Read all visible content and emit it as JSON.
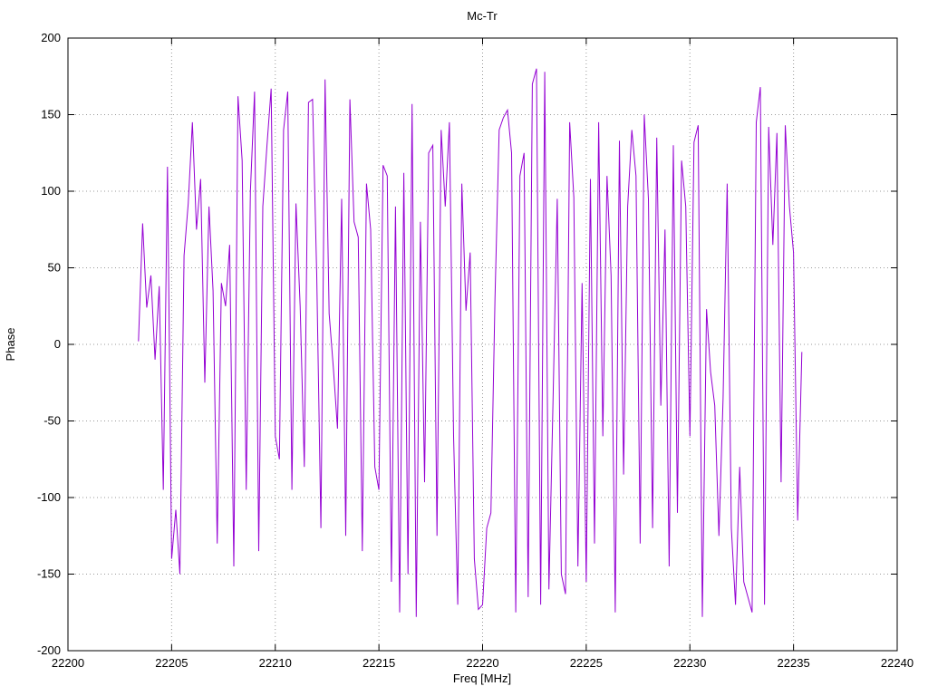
{
  "chart": {
    "title": "Mc-Tr",
    "xlabel": "Freq [MHz]",
    "ylabel": "Phase"
  },
  "chart_data": {
    "type": "line",
    "title": "Mc-Tr",
    "xlabel": "Freq [MHz]",
    "ylabel": "Phase",
    "xlim": [
      22200,
      22240
    ],
    "ylim": [
      -200,
      200
    ],
    "x_ticks": [
      22200,
      22205,
      22210,
      22215,
      22220,
      22225,
      22230,
      22235,
      22240
    ],
    "y_ticks": [
      -200,
      -150,
      -100,
      -50,
      0,
      50,
      100,
      150,
      200
    ],
    "grid": true,
    "grid_color": "#9a9a9a",
    "line_color": "#9400d3",
    "legend": "none",
    "series": [
      {
        "name": "Phase",
        "x_start": 22203.4,
        "x_step": 0.2,
        "values": [
          2,
          79,
          24,
          45,
          -10,
          38,
          -95,
          116,
          -140,
          -108,
          -150,
          58,
          92,
          145,
          75,
          108,
          -25,
          90,
          35,
          -130,
          40,
          25,
          65,
          -145,
          162,
          120,
          -95,
          100,
          165,
          -135,
          90,
          130,
          167,
          -60,
          -75,
          140,
          165,
          -95,
          92,
          25,
          -80,
          158,
          160,
          45,
          -120,
          173,
          20,
          -15,
          -55,
          95,
          -125,
          160,
          80,
          70,
          -135,
          105,
          75,
          -80,
          -95,
          117,
          110,
          -155,
          90,
          -175,
          112,
          -150,
          157,
          -178,
          80,
          -90,
          125,
          130,
          -125,
          140,
          90,
          145,
          -60,
          -170,
          105,
          22,
          60,
          -140,
          -173,
          -170,
          -120,
          -110,
          30,
          140,
          148,
          153,
          125,
          -175,
          110,
          125,
          -165,
          170,
          180,
          -170,
          178,
          -160,
          -35,
          95,
          -150,
          -163,
          145,
          96,
          -145,
          40,
          -155,
          108,
          -130,
          145,
          -60,
          110,
          45,
          -175,
          133,
          -85,
          90,
          140,
          110,
          -130,
          150,
          95,
          -120,
          135,
          -40,
          75,
          -145,
          130,
          -110,
          120,
          90,
          -60,
          132,
          143,
          -178,
          23,
          -18,
          -40,
          -125,
          -35,
          105,
          -120,
          -170,
          -80,
          -155,
          -165,
          -175,
          145,
          168,
          -170,
          142,
          65,
          138,
          -90,
          143,
          90,
          60,
          -115,
          -5
        ]
      }
    ]
  }
}
